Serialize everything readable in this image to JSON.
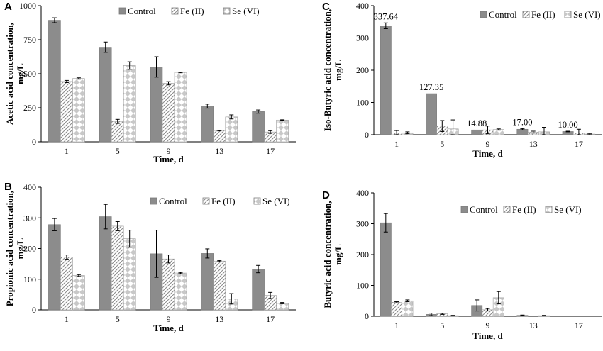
{
  "colors": {
    "control": "#8c8c8c",
    "fe_stroke": "#8a8a8a",
    "se_fill": "#cfcfcf",
    "axis": "#000000"
  },
  "chart_data": [
    {
      "id": "A",
      "panel_label": "A",
      "type": "bar",
      "categories": [
        "1",
        "5",
        "9",
        "13",
        "17"
      ],
      "ylim": [
        0,
        1000
      ],
      "yticks": [
        0,
        250,
        500,
        750,
        1000
      ],
      "ylabel_line1": "Acetic acid concentration,",
      "ylabel_line2": "mg/L",
      "xlabel": "Time, d",
      "legend_position": "top-right",
      "series": [
        {
          "name": "Control",
          "style": "control",
          "values": [
            893,
            695,
            550,
            262,
            222
          ],
          "errors": [
            18,
            38,
            75,
            15,
            12
          ]
        },
        {
          "name": "Fe (II)",
          "style": "fe",
          "values": [
            443,
            150,
            430,
            83,
            72
          ],
          "errors": [
            8,
            15,
            12,
            3,
            10
          ]
        },
        {
          "name": "Se (VI)",
          "style": "se",
          "values": [
            465,
            560,
            510,
            183,
            160
          ],
          "errors": [
            5,
            28,
            3,
            15,
            2
          ]
        }
      ]
    },
    {
      "id": "B",
      "panel_label": "B",
      "type": "bar",
      "categories": [
        "1",
        "5",
        "9",
        "13",
        "17"
      ],
      "ylim": [
        0,
        400
      ],
      "yticks": [
        0,
        100,
        200,
        300,
        400
      ],
      "ylabel_line1": "Propionic acid concentration,",
      "ylabel_line2": "mg/L",
      "xlabel": "Time, d",
      "legend_position": "top-right",
      "series": [
        {
          "name": "Control",
          "style": "control",
          "values": [
            278,
            304,
            183,
            184,
            133
          ],
          "errors": [
            20,
            40,
            77,
            15,
            12
          ]
        },
        {
          "name": "Fe (II)",
          "style": "fe",
          "values": [
            172,
            273,
            166,
            159,
            47
          ],
          "errors": [
            7,
            15,
            13,
            2,
            10
          ]
        },
        {
          "name": "Se (VI)",
          "style": "se",
          "values": [
            112,
            232,
            120,
            36,
            22
          ],
          "errors": [
            3,
            28,
            2,
            17,
            2
          ]
        }
      ]
    },
    {
      "id": "C",
      "panel_label": "C",
      "type": "bar",
      "categories": [
        "1",
        "5",
        "9",
        "13",
        "17"
      ],
      "ylim": [
        0,
        400
      ],
      "yticks": [
        0,
        100,
        200,
        300,
        400
      ],
      "ylabel_line1": "Iso-Butyric acid concentration,",
      "ylabel_line2": "mg/L",
      "xlabel": "Time, d",
      "legend_position": "top-right",
      "data_labels": [
        "337.64",
        "127.35",
        "14.88",
        "17.00",
        "10.00"
      ],
      "series": [
        {
          "name": "Control",
          "style": "control",
          "values": [
            337.64,
            127.35,
            14.88,
            17.0,
            10.0
          ],
          "errors": [
            9,
            0,
            0,
            2,
            1
          ]
        },
        {
          "name": "Fe (II)",
          "style": "fe",
          "values": [
            5,
            27,
            15,
            8,
            5
          ],
          "errors": [
            8,
            17,
            12,
            3,
            12
          ]
        },
        {
          "name": "Se (VI)",
          "style": "se",
          "values": [
            6,
            18,
            16,
            9,
            2
          ],
          "errors": [
            3,
            28,
            2,
            14,
            2
          ]
        }
      ]
    },
    {
      "id": "D",
      "panel_label": "D",
      "type": "bar",
      "categories": [
        "1",
        "5",
        "9",
        "13",
        "17"
      ],
      "ylim": [
        0,
        400
      ],
      "yticks": [
        0,
        100,
        200,
        300,
        400
      ],
      "ylabel_line1": "Butyric acid concentration,",
      "ylabel_line2": "mg/L",
      "xlabel": "Time, d",
      "legend_position": "top-right",
      "series": [
        {
          "name": "Control",
          "style": "control",
          "values": [
            303,
            6,
            35,
            3,
            0
          ],
          "errors": [
            30,
            4,
            18,
            1,
            0
          ]
        },
        {
          "name": "Fe (II)",
          "style": "fe",
          "values": [
            45,
            8,
            21,
            0,
            0
          ],
          "errors": [
            2,
            2,
            4,
            0,
            0
          ]
        },
        {
          "name": "Se (VI)",
          "style": "se",
          "values": [
            50,
            2,
            60,
            2,
            0
          ],
          "errors": [
            3,
            1,
            20,
            1,
            0
          ]
        }
      ]
    }
  ]
}
